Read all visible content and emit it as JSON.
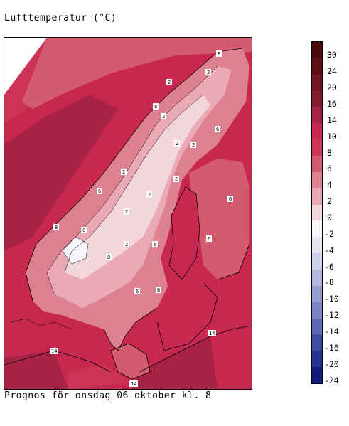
{
  "title": "Lufttemperatur (°C)",
  "caption": "Prognos för onsdag 06 oktober kl. 8",
  "legend": {
    "labels": [
      "30",
      "24",
      "20",
      "16",
      "14",
      "10",
      "8",
      "6",
      "4",
      "2",
      "0",
      "-2",
      "-4",
      "-6",
      "-8",
      "-10",
      "-12",
      "-14",
      "-16",
      "-20",
      "-24"
    ],
    "colors": [
      "#4a0a0a",
      "#5e1015",
      "#731622",
      "#851b30",
      "#a82244",
      "#c8284f",
      "#cc3456",
      "#d45a70",
      "#dd8090",
      "#e9a9b5",
      "#f3d6dc",
      "#f7f7fb",
      "#e6e6f3",
      "#cfd1ea",
      "#b3b8de",
      "#959dd0",
      "#7a83c3",
      "#5c69b6",
      "#3d4da4",
      "#233592",
      "#101c7a"
    ]
  },
  "map_labels": [
    "8",
    "2",
    "2",
    "8",
    "2",
    "6",
    "2",
    "2",
    "2",
    "2",
    "2",
    "0",
    "8",
    "2",
    "2",
    "6",
    "6",
    "6",
    "6",
    "8",
    "6",
    "6",
    "14",
    "14",
    "14"
  ]
}
